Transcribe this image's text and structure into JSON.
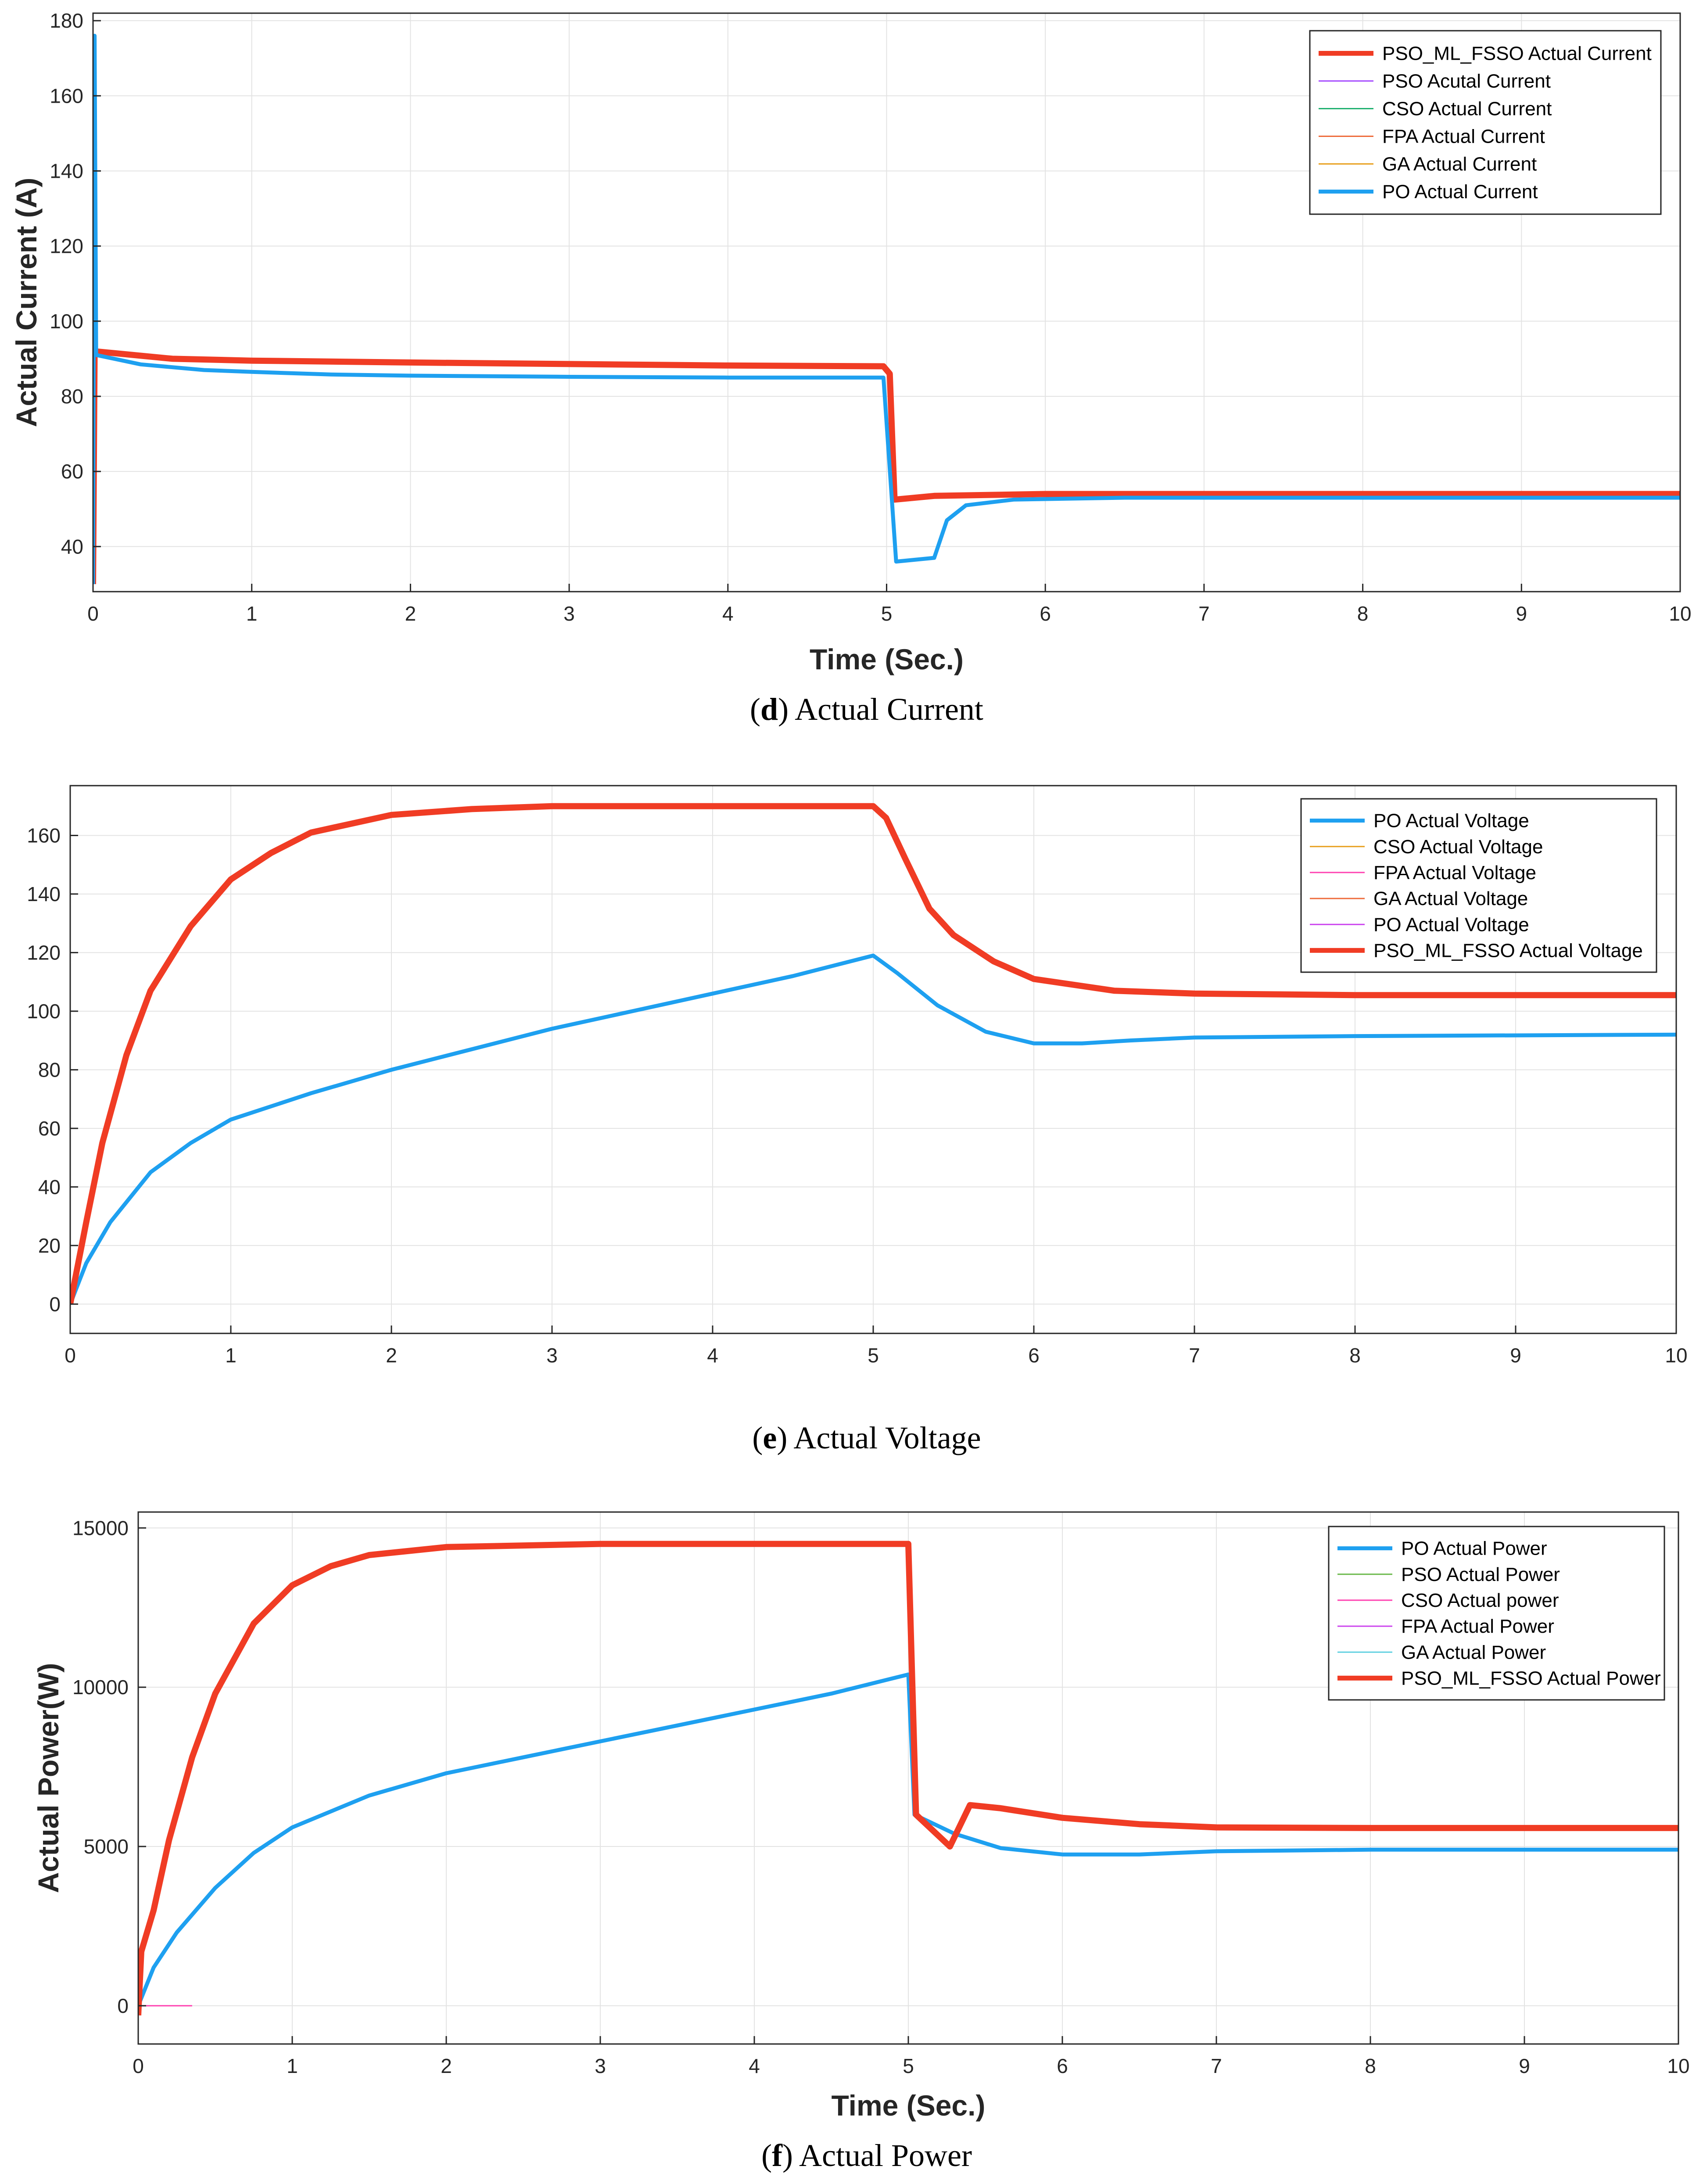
{
  "chart_data": [
    {
      "panel": "d",
      "type": "line",
      "caption_letter": "d",
      "caption_text": "Actual Current",
      "xlabel": "Time (Sec.)",
      "ylabel": "Actual Current (A)",
      "xlim": [
        0,
        10
      ],
      "ylim": [
        28,
        182
      ],
      "xticks": [
        0,
        1,
        2,
        3,
        4,
        5,
        6,
        7,
        8,
        9,
        10
      ],
      "yticks": [
        40,
        60,
        80,
        100,
        120,
        140,
        160,
        180
      ],
      "grid": true,
      "legend_position": "top-right",
      "series": [
        {
          "name": "PSO_ML_FSSO Actual Current",
          "color": "#f03c24",
          "width": 14,
          "points": [
            [
              0,
              30
            ],
            [
              0.01,
              92
            ],
            [
              0.5,
              90
            ],
            [
              1,
              89.5
            ],
            [
              2,
              89
            ],
            [
              3,
              88.6
            ],
            [
              4,
              88.2
            ],
            [
              4.98,
              88
            ],
            [
              5.02,
              86
            ],
            [
              5.05,
              52.5
            ],
            [
              5.3,
              53.5
            ],
            [
              6,
              54
            ],
            [
              7,
              54
            ],
            [
              8,
              54
            ],
            [
              10,
              54
            ]
          ]
        },
        {
          "name": "PSO Acutal Current",
          "color": "#a64dff",
          "width": 3,
          "points": []
        },
        {
          "name": "CSO Actual Current",
          "color": "#20b070",
          "width": 3,
          "points": []
        },
        {
          "name": "FPA Actual Current",
          "color": "#ee6a3a",
          "width": 3,
          "points": []
        },
        {
          "name": "GA Actual Current",
          "color": "#e8a020",
          "width": 3,
          "points": []
        },
        {
          "name": "PO Actual Current",
          "color": "#1ea0f0",
          "width": 9,
          "points": [
            [
              0,
              30
            ],
            [
              0.01,
              176
            ],
            [
              0.02,
              91
            ],
            [
              0.3,
              88.5
            ],
            [
              0.7,
              87
            ],
            [
              1,
              86.5
            ],
            [
              1.5,
              85.8
            ],
            [
              2,
              85.5
            ],
            [
              3,
              85.2
            ],
            [
              4,
              85
            ],
            [
              4.98,
              85
            ],
            [
              5.06,
              36
            ],
            [
              5.3,
              37
            ],
            [
              5.38,
              47
            ],
            [
              5.5,
              51
            ],
            [
              5.8,
              52.5
            ],
            [
              6.5,
              53
            ],
            [
              10,
              53
            ]
          ]
        }
      ]
    },
    {
      "panel": "e",
      "type": "line",
      "caption_letter": "e",
      "caption_text": "Actual Voltage",
      "xlabel": "",
      "ylabel": "",
      "xlim": [
        0,
        10
      ],
      "ylim": [
        -10,
        177
      ],
      "xticks": [
        0,
        1,
        2,
        3,
        4,
        5,
        6,
        7,
        8,
        9,
        10
      ],
      "yticks": [
        0,
        20,
        40,
        60,
        80,
        100,
        120,
        140,
        160
      ],
      "grid": true,
      "legend_position": "top-right",
      "series": [
        {
          "name": "PO Actual Voltage",
          "color": "#1ea0f0",
          "width": 9,
          "points": [
            [
              0,
              0
            ],
            [
              0.1,
              14
            ],
            [
              0.25,
              28
            ],
            [
              0.5,
              45
            ],
            [
              0.75,
              55
            ],
            [
              1,
              63
            ],
            [
              1.5,
              72
            ],
            [
              2,
              80
            ],
            [
              2.5,
              87
            ],
            [
              3,
              94
            ],
            [
              3.5,
              100
            ],
            [
              4,
              106
            ],
            [
              4.5,
              112
            ],
            [
              5,
              119
            ],
            [
              5.15,
              113
            ],
            [
              5.4,
              102
            ],
            [
              5.7,
              93
            ],
            [
              6,
              89
            ],
            [
              6.3,
              89
            ],
            [
              6.6,
              90
            ],
            [
              7,
              91
            ],
            [
              8,
              91.5
            ],
            [
              10,
              92
            ]
          ]
        },
        {
          "name": "CSO Actual Voltage",
          "color": "#e8a020",
          "width": 3,
          "points": []
        },
        {
          "name": "FPA Actual Voltage",
          "color": "#ff40b0",
          "width": 3,
          "points": []
        },
        {
          "name": "GA Actual Voltage",
          "color": "#ee6a3a",
          "width": 3,
          "points": []
        },
        {
          "name": "PO Actual Voltage",
          "color": "#cc44ee",
          "width": 3,
          "points": []
        },
        {
          "name": "PSO_ML_FSSO Actual Voltage",
          "color": "#f03c24",
          "width": 14,
          "points": [
            [
              0,
              0
            ],
            [
              0.1,
              28
            ],
            [
              0.2,
              55
            ],
            [
              0.35,
              85
            ],
            [
              0.5,
              107
            ],
            [
              0.75,
              129
            ],
            [
              1,
              145
            ],
            [
              1.25,
              154
            ],
            [
              1.5,
              161
            ],
            [
              2,
              167
            ],
            [
              2.5,
              169
            ],
            [
              3,
              170
            ],
            [
              4,
              170
            ],
            [
              5,
              170
            ],
            [
              5.08,
              166
            ],
            [
              5.2,
              152
            ],
            [
              5.35,
              135
            ],
            [
              5.5,
              126
            ],
            [
              5.75,
              117
            ],
            [
              6,
              111
            ],
            [
              6.5,
              107
            ],
            [
              7,
              106
            ],
            [
              8,
              105.5
            ],
            [
              10,
              105.5
            ]
          ]
        }
      ]
    },
    {
      "panel": "f",
      "type": "line",
      "caption_letter": "f",
      "caption_text": "Actual Power",
      "xlabel": "Time (Sec.)",
      "ylabel": "Actual Power(W)",
      "xlim": [
        0,
        10
      ],
      "ylim": [
        -1200,
        15500
      ],
      "xticks": [
        0,
        1,
        2,
        3,
        4,
        5,
        6,
        7,
        8,
        9,
        10
      ],
      "yticks": [
        0,
        5000,
        10000,
        15000
      ],
      "grid": true,
      "legend_position": "top-right",
      "series": [
        {
          "name": "PO Actual Power",
          "color": "#1ea0f0",
          "width": 9,
          "points": [
            [
              0,
              0
            ],
            [
              0.1,
              1200
            ],
            [
              0.25,
              2300
            ],
            [
              0.5,
              3700
            ],
            [
              0.75,
              4800
            ],
            [
              1,
              5600
            ],
            [
              1.5,
              6600
            ],
            [
              2,
              7300
            ],
            [
              2.5,
              7800
            ],
            [
              3,
              8300
            ],
            [
              3.5,
              8800
            ],
            [
              4,
              9300
            ],
            [
              4.5,
              9800
            ],
            [
              5,
              10400
            ],
            [
              5.04,
              6000
            ],
            [
              5.3,
              5400
            ],
            [
              5.6,
              4950
            ],
            [
              6,
              4750
            ],
            [
              6.5,
              4750
            ],
            [
              7,
              4850
            ],
            [
              8,
              4900
            ],
            [
              10,
              4900
            ]
          ]
        },
        {
          "name": "PSO Actual Power",
          "color": "#6ab84a",
          "width": 3,
          "points": []
        },
        {
          "name": "CSO Actual power",
          "color": "#ff40b0",
          "width": 3,
          "points": [
            [
              0,
              0
            ],
            [
              0.35,
              0
            ]
          ]
        },
        {
          "name": "FPA Actual Power",
          "color": "#cc44ee",
          "width": 3,
          "points": []
        },
        {
          "name": "GA Actual Power",
          "color": "#60d0e0",
          "width": 3,
          "points": []
        },
        {
          "name": "PSO_ML_FSSO Actual Power",
          "color": "#f03c24",
          "width": 14,
          "points": [
            [
              0,
              -300
            ],
            [
              0.02,
              1700
            ],
            [
              0.1,
              3000
            ],
            [
              0.2,
              5200
            ],
            [
              0.35,
              7800
            ],
            [
              0.5,
              9800
            ],
            [
              0.75,
              12000
            ],
            [
              1,
              13200
            ],
            [
              1.25,
              13800
            ],
            [
              1.5,
              14150
            ],
            [
              2,
              14400
            ],
            [
              3,
              14500
            ],
            [
              4,
              14500
            ],
            [
              5,
              14500
            ],
            [
              5.05,
              6000
            ],
            [
              5.27,
              5000
            ],
            [
              5.4,
              6300
            ],
            [
              5.6,
              6200
            ],
            [
              6,
              5900
            ],
            [
              6.5,
              5700
            ],
            [
              7,
              5600
            ],
            [
              8,
              5580
            ],
            [
              10,
              5580
            ]
          ]
        }
      ]
    }
  ]
}
